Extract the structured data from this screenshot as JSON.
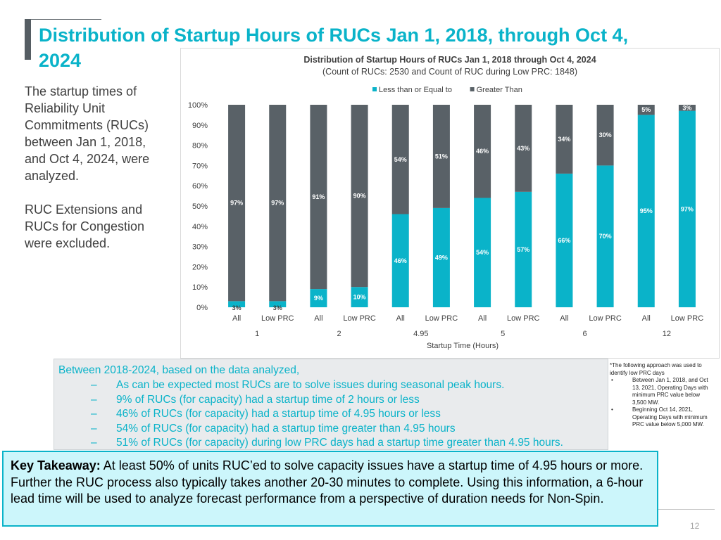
{
  "slide": {
    "title": "Distribution of Startup Hours of RUCs Jan 1, 2018, through Oct 4, 2024",
    "side_paragraphs": [
      "The startup times of Reliability Unit Commitments (RUCs) between Jan 1, 2018, and Oct 4, 2024, were analyzed.",
      "RUC Extensions and RUCs for Congestion were excluded."
    ],
    "bullets": {
      "intro": "Between 2018-2024, based on the data analyzed,",
      "dash": "–",
      "items": [
        "As can be expected most RUCs are to solve issues during seasonal peak hours.",
        "9% of RUCs (for capacity) had a startup time of 2 hours or less",
        "46% of RUCs (for capacity) had a startup time of 4.95 hours or less",
        "54% of RUCs (for capacity) had a startup time greater than 4.95 hours",
        "51% of RUCs (for capacity) during low PRC days had a startup time greater than 4.95 hours."
      ]
    },
    "footnote": {
      "intro": "*The following approach was used to identify low PRC days",
      "bullet": "•",
      "items": [
        "Between Jan 1, 2018, and Oct 13, 2021, Operating Days with minimum PRC value below 3,500 MW.",
        "Beginning  Oct 14, 2021, Operating Days with minimum PRC value below 5,000 MW."
      ]
    },
    "takeaway": {
      "label": "Key Takeaway:",
      "text": " At least 50% of units RUC’ed to solve capacity issues have a startup time of 4.95 hours or more.  Further the RUC process also typically takes another 20-30 minutes to complete. Using this information, a 6-hour lead time will be used to analyze forecast performance from a perspective of duration needs for Non-Spin."
    },
    "page_number": "12"
  },
  "chart_data": {
    "type": "bar",
    "stacked": true,
    "title": "Distribution of Startup Hours of RUCs Jan 1, 2018 through Oct 4, 2024",
    "subtitle": "(Count of RUCs: 2530 and Count of RUC during Low PRC: 1848)",
    "xlabel": "Startup Time (Hours)",
    "ylabel": "",
    "ylim": [
      0,
      100
    ],
    "yticks": [
      "0%",
      "10%",
      "20%",
      "30%",
      "40%",
      "50%",
      "60%",
      "70%",
      "80%",
      "90%",
      "100%"
    ],
    "categories": [
      "All",
      "Low PRC",
      "All",
      "Low PRC",
      "All",
      "Low PRC",
      "All",
      "Low PRC",
      "All",
      "Low PRC",
      "All",
      "Low PRC"
    ],
    "groups": [
      "1",
      "2",
      "4.95",
      "5",
      "6",
      "12"
    ],
    "legend_position": "top",
    "grid": false,
    "series": [
      {
        "name": "Less than or Equal to",
        "color": "#0ab3c9",
        "values": [
          3,
          3,
          9,
          10,
          46,
          49,
          54,
          57,
          66,
          70,
          95,
          97
        ],
        "labels": [
          "3%",
          "3%",
          "9%",
          "10%",
          "46%",
          "49%",
          "54%",
          "57%",
          "66%",
          "70%",
          "95%",
          "97%"
        ]
      },
      {
        "name": "Greater Than",
        "color": "#596167",
        "values": [
          97,
          97,
          91,
          90,
          54,
          51,
          46,
          43,
          34,
          30,
          5,
          3
        ],
        "labels": [
          "97%",
          "97%",
          "91%",
          "90%",
          "54%",
          "51%",
          "46%",
          "43%",
          "34%",
          "30%",
          "5%",
          "3%"
        ]
      }
    ]
  }
}
